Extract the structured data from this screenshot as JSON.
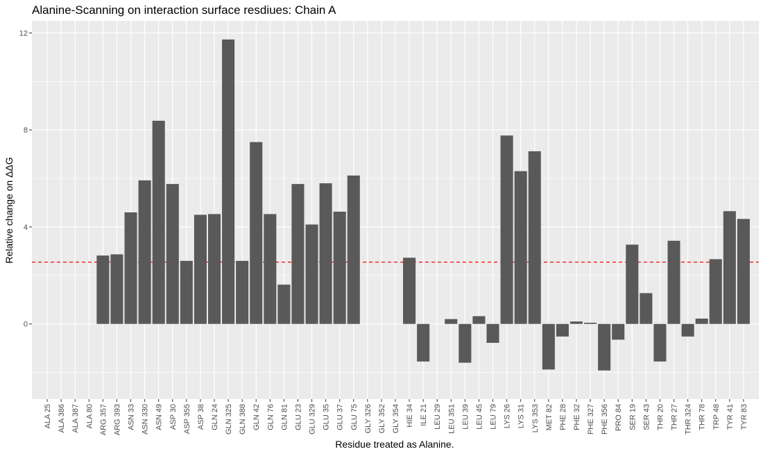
{
  "colors": {
    "panel_background": "#ebebeb",
    "grid_major": "#ffffff",
    "bar_fill": "#595959",
    "reference_line": "#ff0000"
  },
  "chart_data": {
    "type": "bar",
    "title": "Alanine-Scanning on interaction surface resdiues: Chain A",
    "xlabel": "Residue treated as Alanine.",
    "ylabel": "Relative change on ΔΔG",
    "ylim": [
      -3.1,
      12.5
    ],
    "yticks": [
      0,
      4,
      8,
      12
    ],
    "grid": true,
    "reference_line": {
      "y": 2.55,
      "style": "dashed",
      "color": "#ff0000"
    },
    "categories": [
      "ALA 25",
      "ALA 386",
      "ALA 387",
      "ALA 80",
      "ARG 357",
      "ARG 393",
      "ASN 33",
      "ASN 330",
      "ASN 49",
      "ASP 30",
      "ASP 355",
      "ASP 38",
      "GLN 24",
      "GLN 325",
      "GLN 388",
      "GLN 42",
      "GLN 76",
      "GLN 81",
      "GLU 23",
      "GLU 329",
      "GLU 35",
      "GLU 37",
      "GLU 75",
      "GLY 326",
      "GLY 352",
      "GLY 354",
      "HIE 34",
      "ILE 21",
      "LEU 29",
      "LEU 351",
      "LEU 39",
      "LEU 45",
      "LEU 79",
      "LYS 26",
      "LYS 31",
      "LYS 353",
      "MET 82",
      "PHE 28",
      "PHE 32",
      "PHE 327",
      "PHE 356",
      "PRO 84",
      "SER 19",
      "SER 43",
      "THR 20",
      "THR 27",
      "THR 324",
      "THR 78",
      "TRP 48",
      "TYR 41",
      "TYR 83"
    ],
    "values": [
      0,
      0,
      0,
      0,
      2.82,
      2.87,
      4.6,
      5.92,
      8.38,
      5.77,
      2.6,
      4.5,
      4.53,
      11.73,
      2.6,
      7.5,
      4.53,
      1.62,
      5.77,
      4.1,
      5.8,
      4.63,
      6.12,
      0,
      0,
      0,
      2.73,
      -1.55,
      0,
      0.2,
      -1.6,
      0.32,
      -0.78,
      7.77,
      6.3,
      7.12,
      -1.88,
      -0.52,
      0.1,
      0.05,
      -1.92,
      -0.65,
      3.27,
      1.27,
      -1.55,
      3.43,
      -0.52,
      0.22,
      2.67,
      4.65,
      4.33
    ]
  }
}
